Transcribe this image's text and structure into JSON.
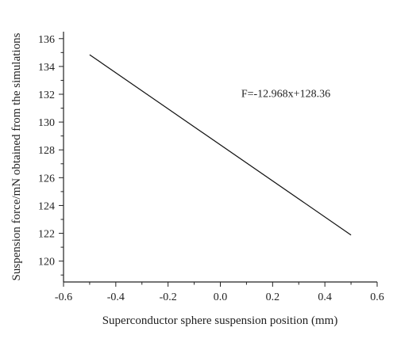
{
  "chart_data": {
    "type": "line",
    "title": "",
    "xlabel": "Superconductor sphere suspension position (mm)",
    "ylabel": "Suspension force/mN obtained from the simulations",
    "xlim": [
      -0.6,
      0.6
    ],
    "ylim": [
      118.5,
      136.5
    ],
    "x_ticks": [
      -0.6,
      -0.4,
      -0.2,
      0.0,
      0.2,
      0.4,
      0.6
    ],
    "x_tick_labels": [
      "-0.6",
      "-0.4",
      "-0.2",
      "0.0",
      "0.2",
      "0.4",
      "0.6"
    ],
    "y_ticks": [
      120,
      122,
      124,
      126,
      128,
      130,
      132,
      134,
      136
    ],
    "y_tick_labels": [
      "120",
      "122",
      "124",
      "126",
      "128",
      "130",
      "132",
      "134",
      "136"
    ],
    "grid": false,
    "legend": "none",
    "series": [
      {
        "x": [
          -0.5,
          0.5
        ],
        "y": [
          134.84,
          121.88
        ]
      }
    ],
    "annotations": [
      {
        "text": "F=-12.968x+128.36",
        "x": 0.08,
        "y": 131.8
      }
    ]
  }
}
